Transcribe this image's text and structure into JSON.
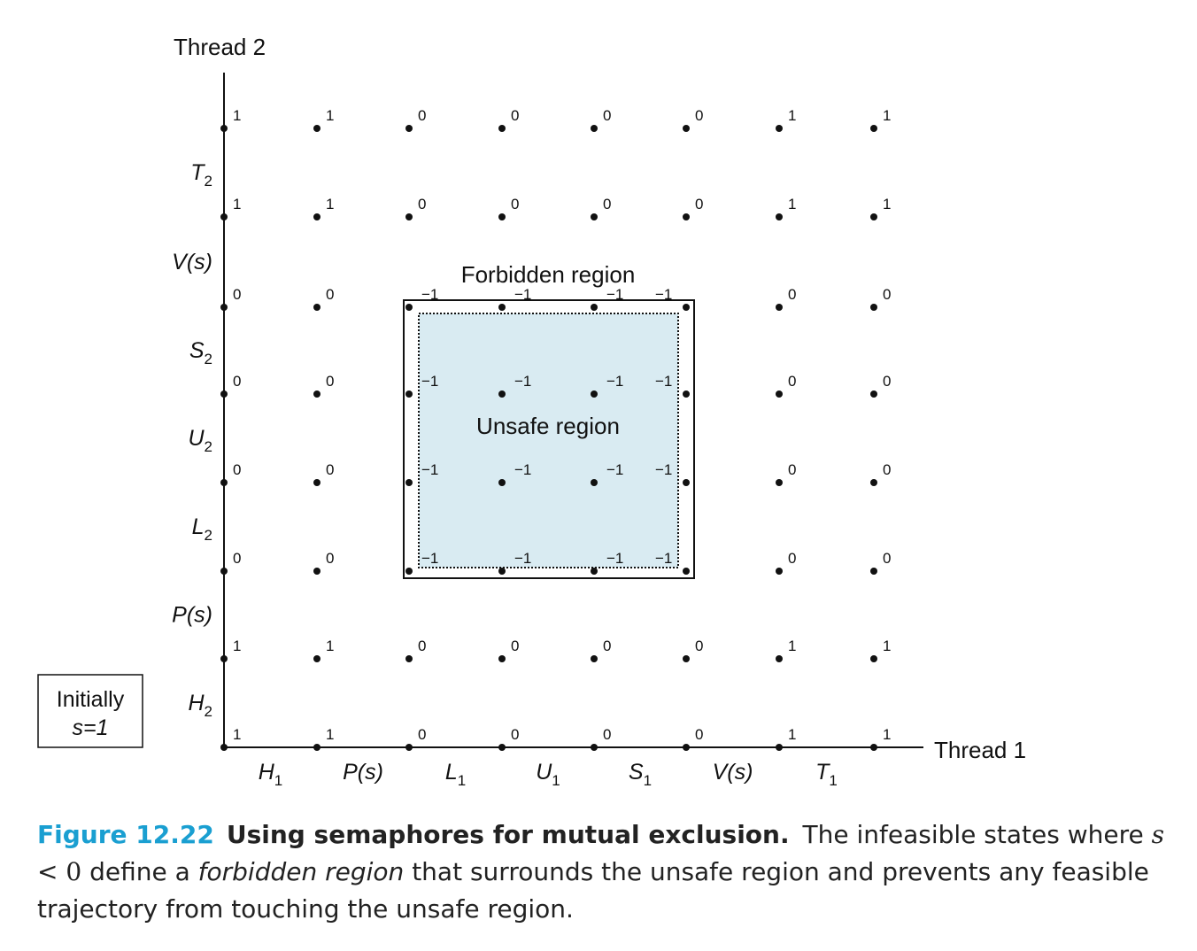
{
  "axes": {
    "y_title": "Thread 2",
    "x_title": "Thread 1",
    "x_segments": [
      {
        "base": "H",
        "sub": "1"
      },
      {
        "base": "P(s)",
        "sub": ""
      },
      {
        "base": "L",
        "sub": "1"
      },
      {
        "base": "U",
        "sub": "1"
      },
      {
        "base": "S",
        "sub": "1"
      },
      {
        "base": "V(s)",
        "sub": ""
      },
      {
        "base": "T",
        "sub": "1"
      }
    ],
    "y_segments": [
      {
        "base": "H",
        "sub": "2"
      },
      {
        "base": "P(s)",
        "sub": ""
      },
      {
        "base": "L",
        "sub": "2"
      },
      {
        "base": "U",
        "sub": "2"
      },
      {
        "base": "S",
        "sub": "2"
      },
      {
        "base": "V(s)",
        "sub": ""
      },
      {
        "base": "T",
        "sub": "2"
      }
    ]
  },
  "state_values_rows_bottom_to_top": [
    [
      "1",
      "1",
      "0",
      "0",
      "0",
      "0",
      "1",
      "1"
    ],
    [
      "1",
      "1",
      "0",
      "0",
      "0",
      "0",
      "1",
      "1"
    ],
    [
      "0",
      "0",
      "",
      "",
      "",
      "",
      "0",
      "0"
    ],
    [
      "0",
      "0",
      "",
      "",
      "",
      "",
      "0",
      "0"
    ],
    [
      "0",
      "0",
      "",
      "",
      "",
      "",
      "0",
      "0"
    ],
    [
      "0",
      "0",
      "",
      "",
      "",
      "",
      "0",
      "0"
    ],
    [
      "1",
      "1",
      "0",
      "0",
      "0",
      "0",
      "1",
      "1"
    ],
    [
      "1",
      "1",
      "0",
      "0",
      "0",
      "0",
      "1",
      "1"
    ]
  ],
  "unsafe_values": "−1",
  "regions": {
    "forbidden_label": "Forbidden region",
    "unsafe_label": "Unsafe region",
    "unsafe_fill": "#d9ebf2"
  },
  "initial_box": {
    "line1": "Initially",
    "line2": "s=1"
  },
  "caption": {
    "figure_number": "Figure 12.22",
    "title": "Using semaphores for mutual exclusion.",
    "text_1": "The infeasible states where",
    "math_var": "s",
    "math_op": " < 0",
    "text_2": " define a ",
    "emphasis": "forbidden region",
    "text_3": " that surrounds the unsafe region and prevents any feasible trajectory from touching the unsafe region.",
    "accent_color": "#1a9fd1"
  }
}
